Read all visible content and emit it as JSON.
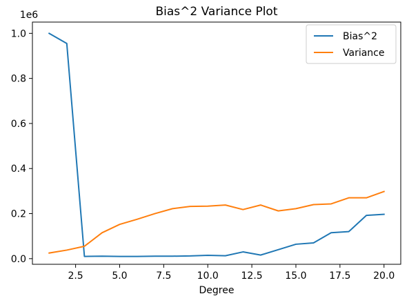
{
  "chart_data": {
    "type": "line",
    "title": "Bias^2 Variance Plot",
    "xlabel": "Degree",
    "ylabel": "",
    "y_offset_label": "1e6",
    "xlim": [
      0.05,
      20.95
    ],
    "ylim": [
      -0.025,
      1.05
    ],
    "x_ticks": [
      2.5,
      5.0,
      7.5,
      10.0,
      12.5,
      15.0,
      17.5,
      20.0
    ],
    "x_tick_labels": [
      "2.5",
      "5.0",
      "7.5",
      "10.0",
      "12.5",
      "15.0",
      "17.5",
      "20.0"
    ],
    "y_ticks": [
      0.0,
      0.2,
      0.4,
      0.6,
      0.8,
      1.0
    ],
    "y_tick_labels": [
      "0.0",
      "0.2",
      "0.4",
      "0.6",
      "0.8",
      "1.0"
    ],
    "legend_position": "top-right",
    "grid": false,
    "x": [
      1,
      2,
      3,
      4,
      5,
      6,
      7,
      8,
      9,
      10,
      11,
      12,
      13,
      14,
      15,
      16,
      17,
      18,
      19,
      20
    ],
    "series": [
      {
        "name": "Bias^2",
        "color": "#1f77b4",
        "values": [
          1.0,
          0.955,
          0.01,
          0.011,
          0.01,
          0.01,
          0.011,
          0.011,
          0.012,
          0.015,
          0.013,
          0.03,
          0.016,
          0.04,
          0.064,
          0.07,
          0.115,
          0.12,
          0.192,
          0.197
        ]
      },
      {
        "name": "Variance",
        "color": "#ff7f0e",
        "values": [
          0.025,
          0.038,
          0.055,
          0.115,
          0.152,
          0.175,
          0.2,
          0.222,
          0.232,
          0.233,
          0.238,
          0.218,
          0.238,
          0.212,
          0.222,
          0.24,
          0.243,
          0.27,
          0.27,
          0.298
        ]
      }
    ]
  }
}
